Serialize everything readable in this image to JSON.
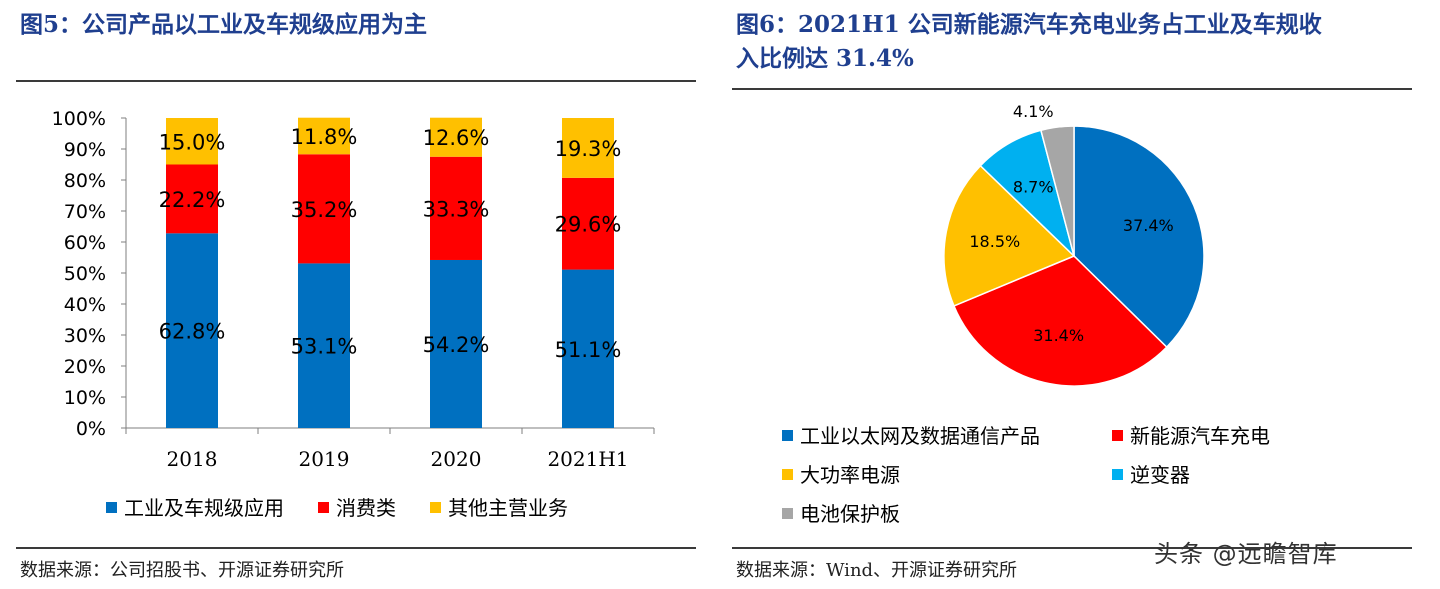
{
  "left": {
    "title": "图5：公司产品以工业及车规级应用为主",
    "source": "数据来源：公司招股书、开源证券研究所"
  },
  "right": {
    "title_line1": "图6：2021H1 公司新能源汽车充电业务占工业及车规收",
    "title_line2": "入比例达 31.4%",
    "source": "数据来源：Wind、开源证券研究所"
  },
  "watermark": "头条 @远瞻智库",
  "chart_data": [
    {
      "type": "bar",
      "stacked": true,
      "categories": [
        "2018",
        "2019",
        "2020",
        "2021H1"
      ],
      "series": [
        {
          "name": "工业及车规级应用",
          "values": [
            62.8,
            53.1,
            54.2,
            51.1
          ],
          "labels": [
            "62.8%",
            "53.1%",
            "54.2%",
            "51.1%"
          ],
          "color": "#0070c0"
        },
        {
          "name": "消费类",
          "values": [
            22.2,
            35.2,
            33.3,
            29.6
          ],
          "labels": [
            "22.2%",
            "35.2%",
            "33.3%",
            "29.6%"
          ],
          "color": "#ff0000"
        },
        {
          "name": "其他主营业务",
          "values": [
            15.0,
            11.8,
            12.6,
            19.3
          ],
          "labels": [
            "15.0%",
            "11.8%",
            "12.6%",
            "19.3%"
          ],
          "color": "#ffc000"
        }
      ],
      "yticks": [
        "0%",
        "10%",
        "20%",
        "30%",
        "40%",
        "50%",
        "60%",
        "70%",
        "80%",
        "90%",
        "100%"
      ],
      "ylim": [
        0,
        100
      ],
      "legend_position": "bottom"
    },
    {
      "type": "pie",
      "slices": [
        {
          "name": "工业以太网及数据通信产品",
          "value": 37.4,
          "label": "37.4%",
          "color": "#0070c0"
        },
        {
          "name": "新能源汽车充电",
          "value": 31.4,
          "label": "31.4%",
          "color": "#ff0000"
        },
        {
          "name": "大功率电源",
          "value": 18.5,
          "label": "18.5%",
          "color": "#ffc000"
        },
        {
          "name": "逆变器",
          "value": 8.7,
          "label": "8.7%",
          "color": "#00b0f0"
        },
        {
          "name": "电池保护板",
          "value": 4.1,
          "label": "4.1%",
          "color": "#a6a6a6"
        }
      ],
      "legend_position": "bottom"
    }
  ]
}
